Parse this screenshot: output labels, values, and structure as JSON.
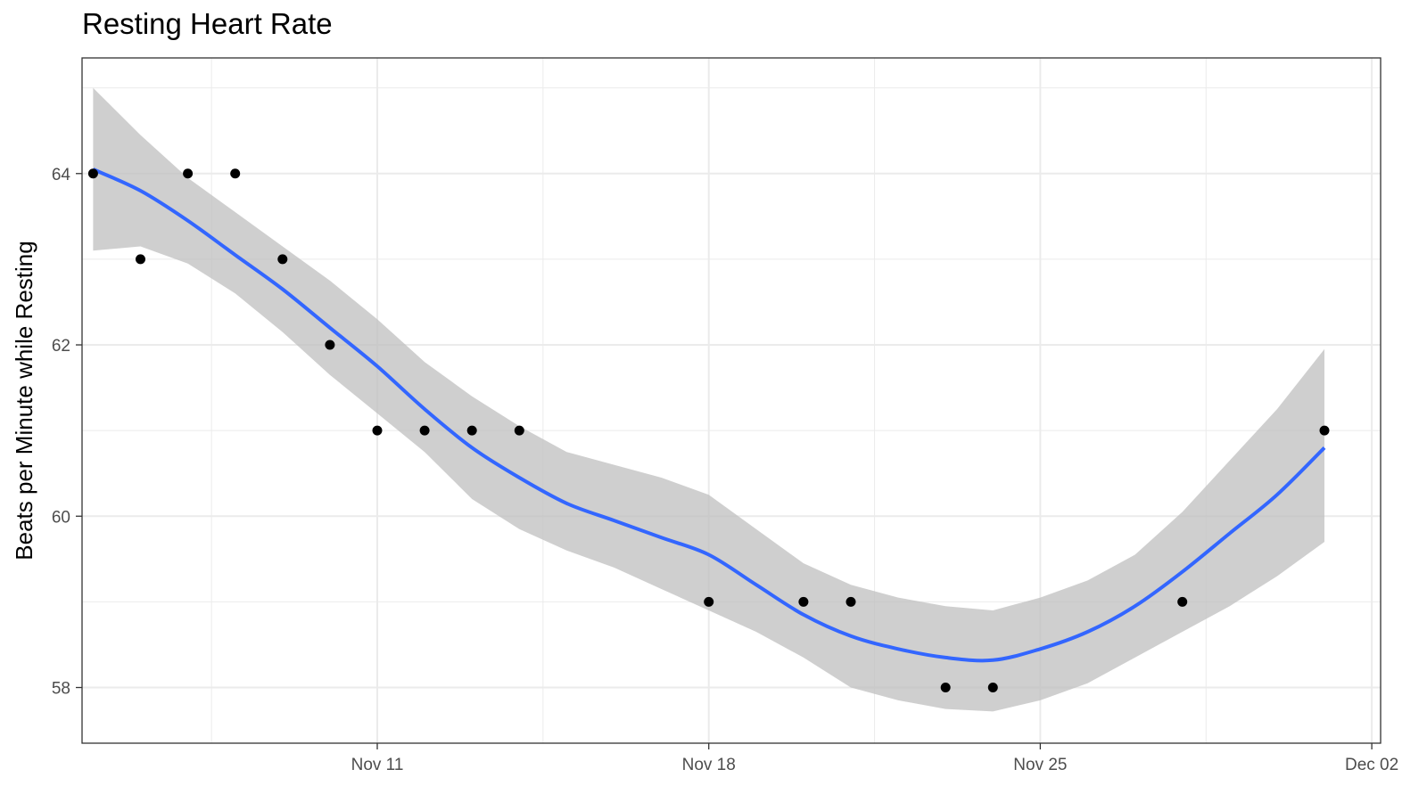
{
  "chart_data": {
    "type": "scatter",
    "title": "Resting Heart Rate",
    "xlabel": "",
    "ylabel": "Beats per Minute while Resting",
    "x_axis_type": "date",
    "x_ticks": [
      "Nov 11",
      "Nov 18",
      "Nov 25",
      "Dec 02"
    ],
    "y_ticks": [
      58,
      60,
      62,
      64
    ],
    "xlim": [
      "2019-11-04",
      "2019-12-02"
    ],
    "ylim": [
      57.35,
      65.35
    ],
    "grid": true,
    "legend": "none",
    "colors": {
      "points": "#000000",
      "smooth_line": "#3366ff",
      "confidence_band": "#bfbfbf",
      "grid": "#ebebeb",
      "panel_border": "#333333",
      "tick_label": "#4d4d4d"
    },
    "points": [
      {
        "x": "2019-11-05",
        "y": 64
      },
      {
        "x": "2019-11-06",
        "y": 63
      },
      {
        "x": "2019-11-07",
        "y": 64
      },
      {
        "x": "2019-11-08",
        "y": 64
      },
      {
        "x": "2019-11-09",
        "y": 63
      },
      {
        "x": "2019-11-10",
        "y": 62
      },
      {
        "x": "2019-11-11",
        "y": 61
      },
      {
        "x": "2019-11-12",
        "y": 61
      },
      {
        "x": "2019-11-13",
        "y": 61
      },
      {
        "x": "2019-11-14",
        "y": 61
      },
      {
        "x": "2019-11-18",
        "y": 59
      },
      {
        "x": "2019-11-20",
        "y": 59
      },
      {
        "x": "2019-11-21",
        "y": 59
      },
      {
        "x": "2019-11-23",
        "y": 58
      },
      {
        "x": "2019-11-24",
        "y": 58
      },
      {
        "x": "2019-11-28",
        "y": 59
      },
      {
        "x": "2019-12-01",
        "y": 61
      }
    ],
    "smooth": [
      {
        "x": "2019-11-05",
        "y": 64.05,
        "lo": 63.1,
        "hi": 65.0
      },
      {
        "x": "2019-11-06",
        "y": 63.8,
        "lo": 63.15,
        "hi": 64.45
      },
      {
        "x": "2019-11-07",
        "y": 63.45,
        "lo": 62.95,
        "hi": 63.95
      },
      {
        "x": "2019-11-08",
        "y": 63.05,
        "lo": 62.6,
        "hi": 63.55
      },
      {
        "x": "2019-11-09",
        "y": 62.65,
        "lo": 62.15,
        "hi": 63.15
      },
      {
        "x": "2019-11-10",
        "y": 62.2,
        "lo": 61.65,
        "hi": 62.75
      },
      {
        "x": "2019-11-11",
        "y": 61.75,
        "lo": 61.2,
        "hi": 62.3
      },
      {
        "x": "2019-11-12",
        "y": 61.25,
        "lo": 60.75,
        "hi": 61.8
      },
      {
        "x": "2019-11-13",
        "y": 60.8,
        "lo": 60.2,
        "hi": 61.4
      },
      {
        "x": "2019-11-14",
        "y": 60.45,
        "lo": 59.85,
        "hi": 61.05
      },
      {
        "x": "2019-11-15",
        "y": 60.15,
        "lo": 59.6,
        "hi": 60.75
      },
      {
        "x": "2019-11-16",
        "y": 59.95,
        "lo": 59.4,
        "hi": 60.6
      },
      {
        "x": "2019-11-17",
        "y": 59.75,
        "lo": 59.15,
        "hi": 60.45
      },
      {
        "x": "2019-11-18",
        "y": 59.55,
        "lo": 58.9,
        "hi": 60.25
      },
      {
        "x": "2019-11-19",
        "y": 59.2,
        "lo": 58.65,
        "hi": 59.85
      },
      {
        "x": "2019-11-20",
        "y": 58.85,
        "lo": 58.35,
        "hi": 59.45
      },
      {
        "x": "2019-11-21",
        "y": 58.6,
        "lo": 58.0,
        "hi": 59.2
      },
      {
        "x": "2019-11-22",
        "y": 58.45,
        "lo": 57.85,
        "hi": 59.05
      },
      {
        "x": "2019-11-23",
        "y": 58.35,
        "lo": 57.75,
        "hi": 58.95
      },
      {
        "x": "2019-11-24",
        "y": 58.32,
        "lo": 57.72,
        "hi": 58.9
      },
      {
        "x": "2019-11-25",
        "y": 58.45,
        "lo": 57.85,
        "hi": 59.05
      },
      {
        "x": "2019-11-26",
        "y": 58.65,
        "lo": 58.05,
        "hi": 59.25
      },
      {
        "x": "2019-11-27",
        "y": 58.95,
        "lo": 58.35,
        "hi": 59.55
      },
      {
        "x": "2019-11-28",
        "y": 59.35,
        "lo": 58.65,
        "hi": 60.05
      },
      {
        "x": "2019-11-29",
        "y": 59.8,
        "lo": 58.95,
        "hi": 60.65
      },
      {
        "x": "2019-11-30",
        "y": 60.25,
        "lo": 59.3,
        "hi": 61.25
      },
      {
        "x": "2019-12-01",
        "y": 60.8,
        "lo": 59.7,
        "hi": 61.95
      }
    ]
  }
}
